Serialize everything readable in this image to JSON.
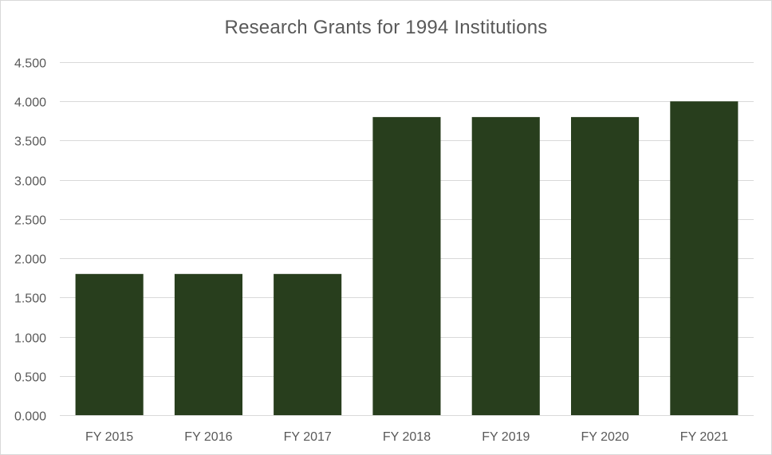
{
  "chart_data": {
    "type": "bar",
    "title": "Research Grants for 1994 Institutions",
    "categories": [
      "FY 2015",
      "FY 2016",
      "FY 2017",
      "FY 2018",
      "FY 2019",
      "FY 2020",
      "FY 2021"
    ],
    "values": [
      1.8,
      1.8,
      1.8,
      3.8,
      3.8,
      3.8,
      4.0
    ],
    "xlabel": "",
    "ylabel": "",
    "ylim": [
      0,
      4.5
    ],
    "yticks": [
      "0.000",
      "0.500",
      "1.000",
      "1.500",
      "2.000",
      "2.500",
      "3.000",
      "3.500",
      "4.000",
      "4.500"
    ],
    "grid": true,
    "legend": "none",
    "bar_color": "#283e1d"
  }
}
